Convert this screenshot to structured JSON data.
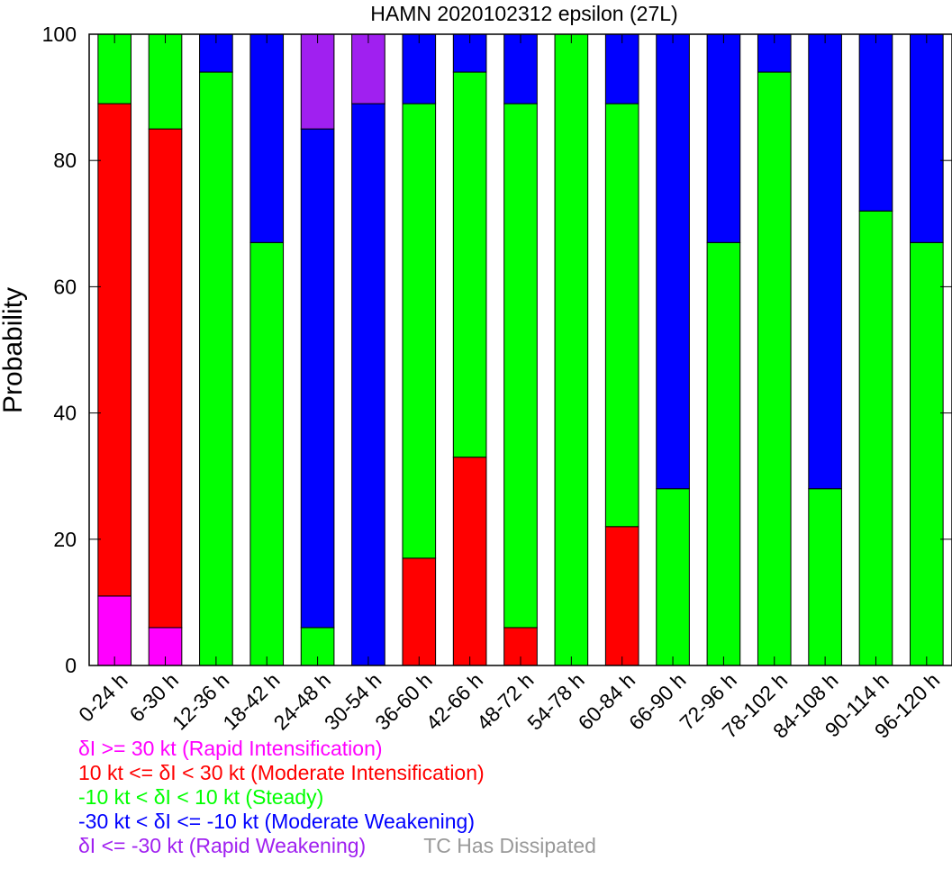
{
  "chart_data": {
    "type": "bar",
    "stacked": true,
    "title": "HAMN 2020102312 epsilon (27L)",
    "xlabel": "",
    "ylabel": "Probability",
    "ylim": [
      0,
      100
    ],
    "yticks": [
      0,
      20,
      40,
      60,
      80,
      100
    ],
    "grid": false,
    "legend_placement": "bottom-left",
    "categories": [
      "0-24 h",
      "6-30 h",
      "12-36 h",
      "18-42 h",
      "24-48 h",
      "30-54 h",
      "36-60 h",
      "42-66 h",
      "48-72 h",
      "54-78 h",
      "60-84 h",
      "66-90 h",
      "72-96 h",
      "78-102 h",
      "84-108 h",
      "90-114 h",
      "96-120 h"
    ],
    "series": [
      {
        "name": "δI >= 30 kt (Rapid Intensification)",
        "color": "#ff00ff",
        "values": [
          11,
          6,
          0,
          0,
          0,
          0,
          0,
          0,
          0,
          0,
          0,
          0,
          0,
          0,
          0,
          0,
          0
        ]
      },
      {
        "name": "10 kt <= δI < 30 kt (Moderate Intensification)",
        "color": "#ff0000",
        "values": [
          78,
          79,
          0,
          0,
          0,
          0,
          17,
          33,
          6,
          0,
          22,
          0,
          0,
          0,
          0,
          0,
          0
        ]
      },
      {
        "name": "-10 kt < δI < 10 kt (Steady)",
        "color": "#00ff00",
        "values": [
          11,
          15,
          94,
          67,
          6,
          0,
          72,
          61,
          83,
          100,
          67,
          28,
          67,
          94,
          28,
          72,
          67
        ]
      },
      {
        "name": "-30 kt < δI <= -10 kt (Moderate Weakening)",
        "color": "#0000ff",
        "values": [
          0,
          0,
          6,
          33,
          79,
          89,
          11,
          6,
          11,
          0,
          11,
          72,
          33,
          6,
          72,
          28,
          33
        ]
      },
      {
        "name": "δI <= -30 kt (Rapid Weakening)",
        "color": "#a020f0",
        "values": [
          0,
          0,
          0,
          0,
          15,
          11,
          0,
          0,
          0,
          0,
          0,
          0,
          0,
          0,
          0,
          0,
          0
        ]
      },
      {
        "name": "TC Has Dissipated",
        "color": "#999999",
        "values": [
          0,
          0,
          0,
          0,
          0,
          0,
          0,
          0,
          0,
          0,
          0,
          0,
          0,
          0,
          0,
          0,
          0
        ]
      }
    ]
  }
}
